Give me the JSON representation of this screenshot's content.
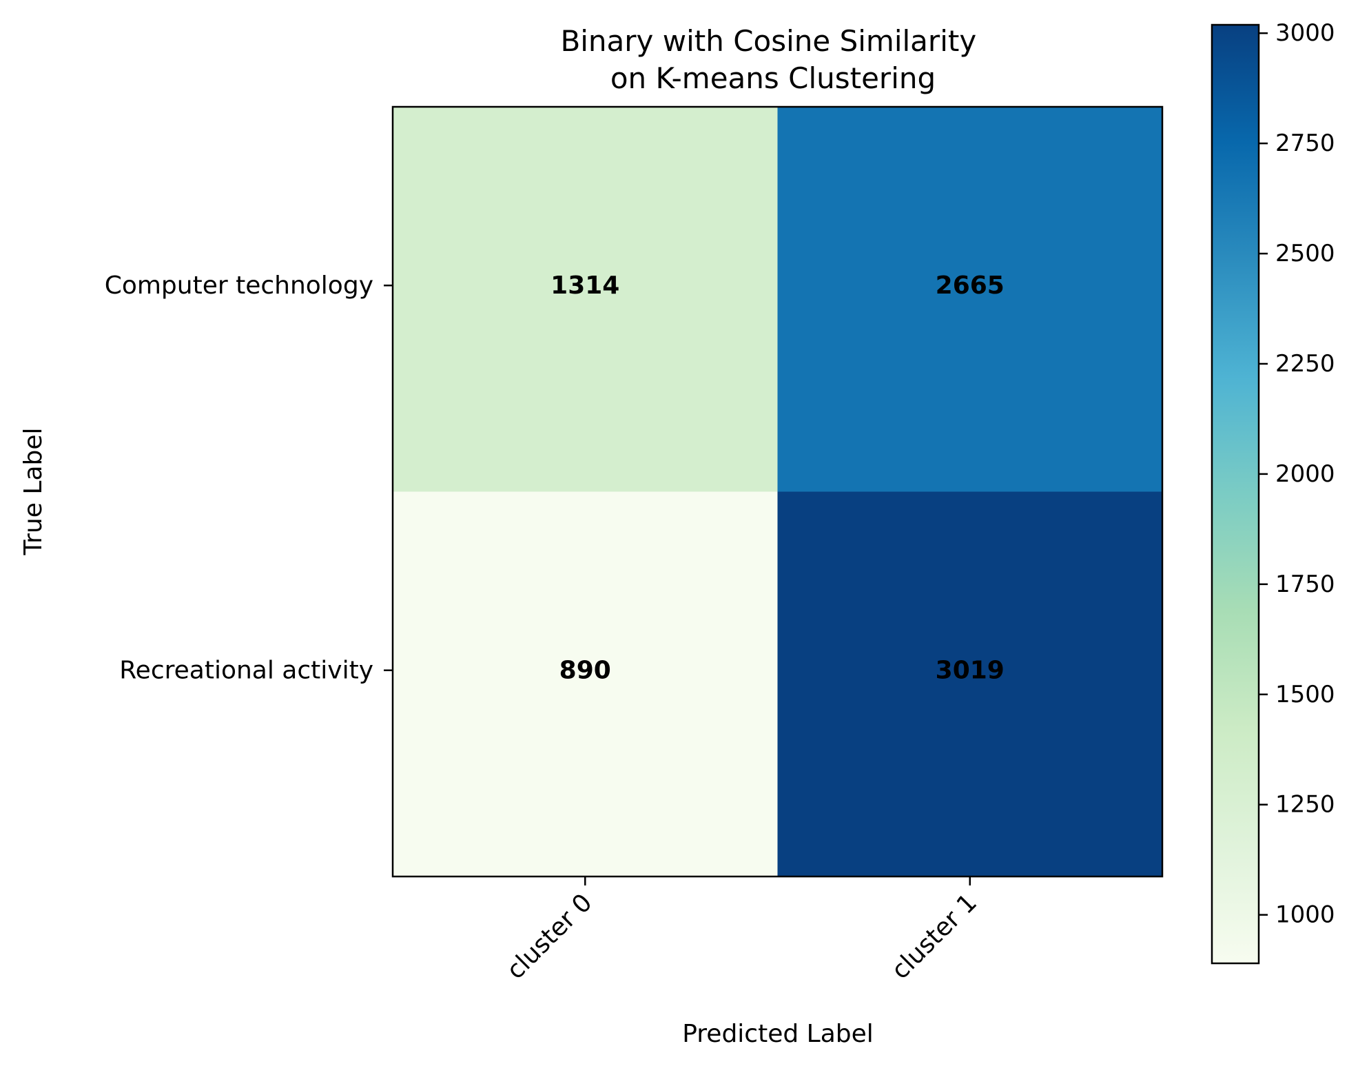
{
  "chart_data": {
    "type": "heatmap",
    "title": [
      "Binary with Cosine Similarity",
      "on K-means Clustering"
    ],
    "xlabel": "Predicted Label",
    "ylabel": "True Label",
    "x_categories": [
      "cluster 0",
      "cluster 1"
    ],
    "y_categories": [
      "Computer technology",
      "Recreational activity"
    ],
    "values": [
      [
        1314,
        2665
      ],
      [
        890,
        3019
      ]
    ],
    "colormap": "GnBu",
    "colorbar": {
      "range": [
        890,
        3019
      ],
      "ticks": [
        1000,
        1250,
        1500,
        1750,
        2000,
        2250,
        2500,
        2750,
        3000
      ],
      "tick_labels": [
        "1000",
        "1250",
        "1500",
        "1750",
        "2000",
        "2250",
        "2500",
        "2750",
        "3000"
      ]
    },
    "colorscale": [
      [
        0.0,
        "#f7fcf0"
      ],
      [
        0.125,
        "#e0f3db"
      ],
      [
        0.25,
        "#ccebc5"
      ],
      [
        0.375,
        "#a8ddb5"
      ],
      [
        0.5,
        "#7bccc4"
      ],
      [
        0.625,
        "#4eb3d3"
      ],
      [
        0.75,
        "#2b8cbe"
      ],
      [
        0.875,
        "#0868ac"
      ],
      [
        1.0,
        "#084081"
      ]
    ]
  }
}
